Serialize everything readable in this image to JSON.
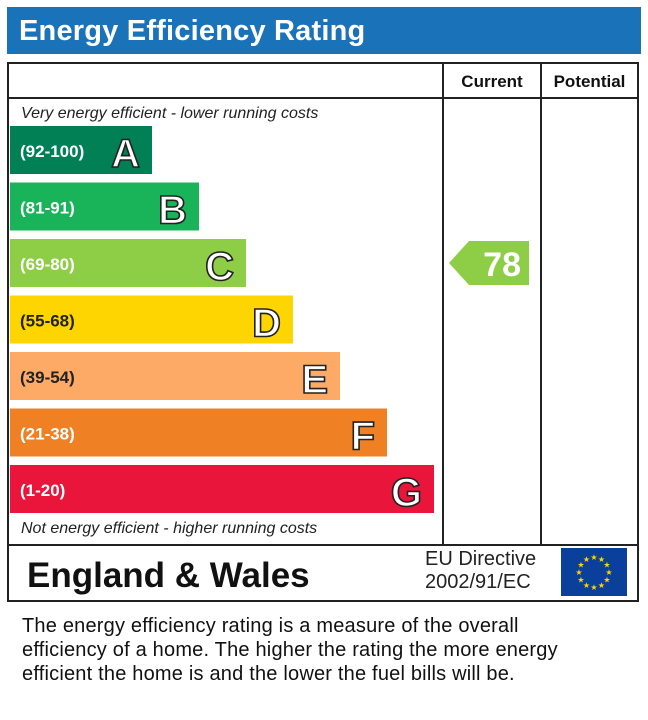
{
  "title": "Energy Efficiency Rating",
  "columns": {
    "current": "Current",
    "potential": "Potential"
  },
  "top_caption": "Very energy efficient - lower running costs",
  "bottom_caption": "Not energy efficient - higher running costs",
  "footer": {
    "country": "England & Wales",
    "directive_line1": "EU Directive",
    "directive_line2": "2002/91/EC"
  },
  "description_lines": [
    "The energy efficiency rating is a measure of the overall",
    "efficiency of a home.  The higher the rating the more energy",
    "efficient the home is and the lower the fuel bills will be."
  ],
  "chart_data": {
    "type": "bar",
    "categories": [
      "A",
      "B",
      "C",
      "D",
      "E",
      "F",
      "G"
    ],
    "ranges": [
      "(92-100)",
      "(81-91)",
      "(69-80)",
      "(55-68)",
      "(39-54)",
      "(21-38)",
      "(1-20)"
    ],
    "colors": [
      "#008054",
      "#19b459",
      "#8dce46",
      "#ffd500",
      "#fcaa65",
      "#ef8023",
      "#e9153b"
    ],
    "current": {
      "value": 78,
      "band": "C",
      "color": "#8dce46"
    },
    "potential": null
  }
}
